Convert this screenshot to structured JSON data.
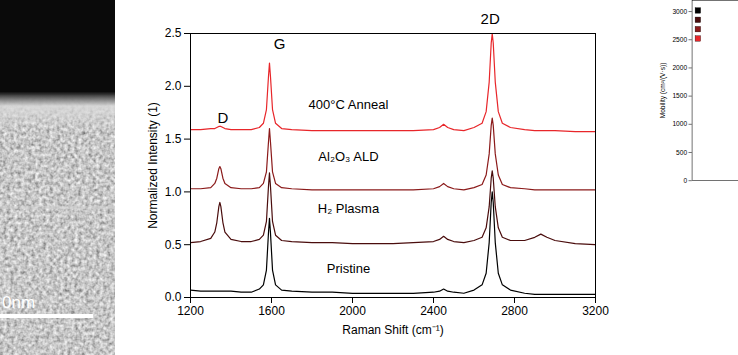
{
  "tem_image": {
    "scale_bar_label": "0nm"
  },
  "chart_data": [
    {
      "type": "line",
      "x_label": "Raman Shift (cm⁻¹)",
      "y_label": "Normalized Intensity (1)",
      "xlim": [
        1200,
        3200
      ],
      "xticks": [
        1200,
        1600,
        2000,
        2400,
        2800,
        3200
      ],
      "ylim": [
        0,
        2.5
      ],
      "yticks": [
        {
          "value": 0,
          "label": "0.0"
        },
        0.5,
        {
          "value": 1,
          "label": "1.0"
        },
        1.5,
        {
          "value": 2,
          "label": "2.0"
        },
        2.5
      ],
      "grid": false,
      "annotations": [
        {
          "text": "D",
          "x": 1360,
          "y": 1.7
        },
        {
          "text": "G",
          "x": 1640,
          "y": 2.4
        },
        {
          "text": "2D",
          "x": 2680,
          "y": 2.64
        }
      ],
      "x": [
        1200,
        1250,
        1300,
        1320,
        1330,
        1340,
        1345,
        1350,
        1360,
        1370,
        1400,
        1450,
        1500,
        1540,
        1560,
        1575,
        1585,
        1590,
        1595,
        1605,
        1620,
        1650,
        1700,
        1800,
        1900,
        2000,
        2100,
        2200,
        2300,
        2400,
        2430,
        2450,
        2470,
        2500,
        2550,
        2600,
        2640,
        2660,
        2675,
        2685,
        2690,
        2695,
        2705,
        2720,
        2740,
        2780,
        2850,
        2900,
        2930,
        2960,
        3000,
        3100,
        3200
      ],
      "series": [
        {
          "name": "Pristine",
          "color": "#000000",
          "label_at": [
            1980,
            0.27
          ],
          "values": [
            0.07,
            0.06,
            0.06,
            0.06,
            0.06,
            0.06,
            0.06,
            0.06,
            0.06,
            0.06,
            0.06,
            0.05,
            0.05,
            0.08,
            0.12,
            0.26,
            0.61,
            0.75,
            0.61,
            0.26,
            0.12,
            0.07,
            0.06,
            0.05,
            0.05,
            0.04,
            0.04,
            0.04,
            0.04,
            0.05,
            0.06,
            0.08,
            0.06,
            0.05,
            0.04,
            0.07,
            0.12,
            0.23,
            0.52,
            0.9,
            1.0,
            0.9,
            0.52,
            0.23,
            0.12,
            0.07,
            0.04,
            0.03,
            0.03,
            0.03,
            0.03,
            0.03,
            0.03
          ]
        },
        {
          "name": "H₂ Plasma",
          "color": "#4a0d0d",
          "label_at": [
            1980,
            0.84
          ],
          "values": [
            0.52,
            0.53,
            0.56,
            0.62,
            0.71,
            0.86,
            0.9,
            0.86,
            0.71,
            0.62,
            0.55,
            0.53,
            0.53,
            0.55,
            0.59,
            0.72,
            1.05,
            1.18,
            1.05,
            0.72,
            0.59,
            0.54,
            0.53,
            0.52,
            0.52,
            0.51,
            0.51,
            0.51,
            0.52,
            0.53,
            0.55,
            0.58,
            0.55,
            0.53,
            0.52,
            0.54,
            0.57,
            0.66,
            0.86,
            1.13,
            1.2,
            1.13,
            0.86,
            0.66,
            0.57,
            0.54,
            0.54,
            0.57,
            0.6,
            0.57,
            0.54,
            0.51,
            0.5
          ]
        },
        {
          "name": "Al₂O₃ ALD",
          "color": "#8b1a1a",
          "label_at": [
            1980,
            1.33
          ],
          "values": [
            1.03,
            1.03,
            1.04,
            1.08,
            1.13,
            1.22,
            1.24,
            1.22,
            1.13,
            1.08,
            1.04,
            1.03,
            1.03,
            1.04,
            1.08,
            1.19,
            1.47,
            1.6,
            1.47,
            1.19,
            1.08,
            1.04,
            1.03,
            1.02,
            1.02,
            1.02,
            1.02,
            1.02,
            1.02,
            1.03,
            1.05,
            1.08,
            1.05,
            1.03,
            1.02,
            1.04,
            1.07,
            1.16,
            1.36,
            1.63,
            1.7,
            1.63,
            1.36,
            1.16,
            1.07,
            1.04,
            1.03,
            1.02,
            1.02,
            1.02,
            1.02,
            1.02,
            1.02
          ]
        },
        {
          "name": "400°C Anneal",
          "color": "#e8262a",
          "label_at": [
            1980,
            1.82
          ],
          "values": [
            1.59,
            1.59,
            1.6,
            1.6,
            1.61,
            1.62,
            1.62,
            1.62,
            1.61,
            1.6,
            1.59,
            1.59,
            1.59,
            1.61,
            1.65,
            1.78,
            2.09,
            2.22,
            2.09,
            1.78,
            1.65,
            1.6,
            1.59,
            1.58,
            1.58,
            1.58,
            1.58,
            1.58,
            1.58,
            1.59,
            1.61,
            1.64,
            1.61,
            1.59,
            1.58,
            1.61,
            1.65,
            1.76,
            2.04,
            2.41,
            2.5,
            2.41,
            2.04,
            1.76,
            1.65,
            1.61,
            1.59,
            1.58,
            1.58,
            1.58,
            1.58,
            1.57,
            1.57
          ]
        }
      ]
    },
    {
      "type": "bar",
      "y_label": "Mobility (cm²/(V·s))",
      "ylim": [
        0,
        3200
      ],
      "yticks": [
        0,
        500,
        1000,
        1500,
        2000,
        2500,
        3000
      ],
      "series": [
        {
          "color": "#000000",
          "values": []
        },
        {
          "color": "#4a0d0d",
          "values": []
        },
        {
          "color": "#8b1a1a",
          "values": []
        },
        {
          "color": "#e8262a",
          "values": []
        }
      ]
    }
  ]
}
